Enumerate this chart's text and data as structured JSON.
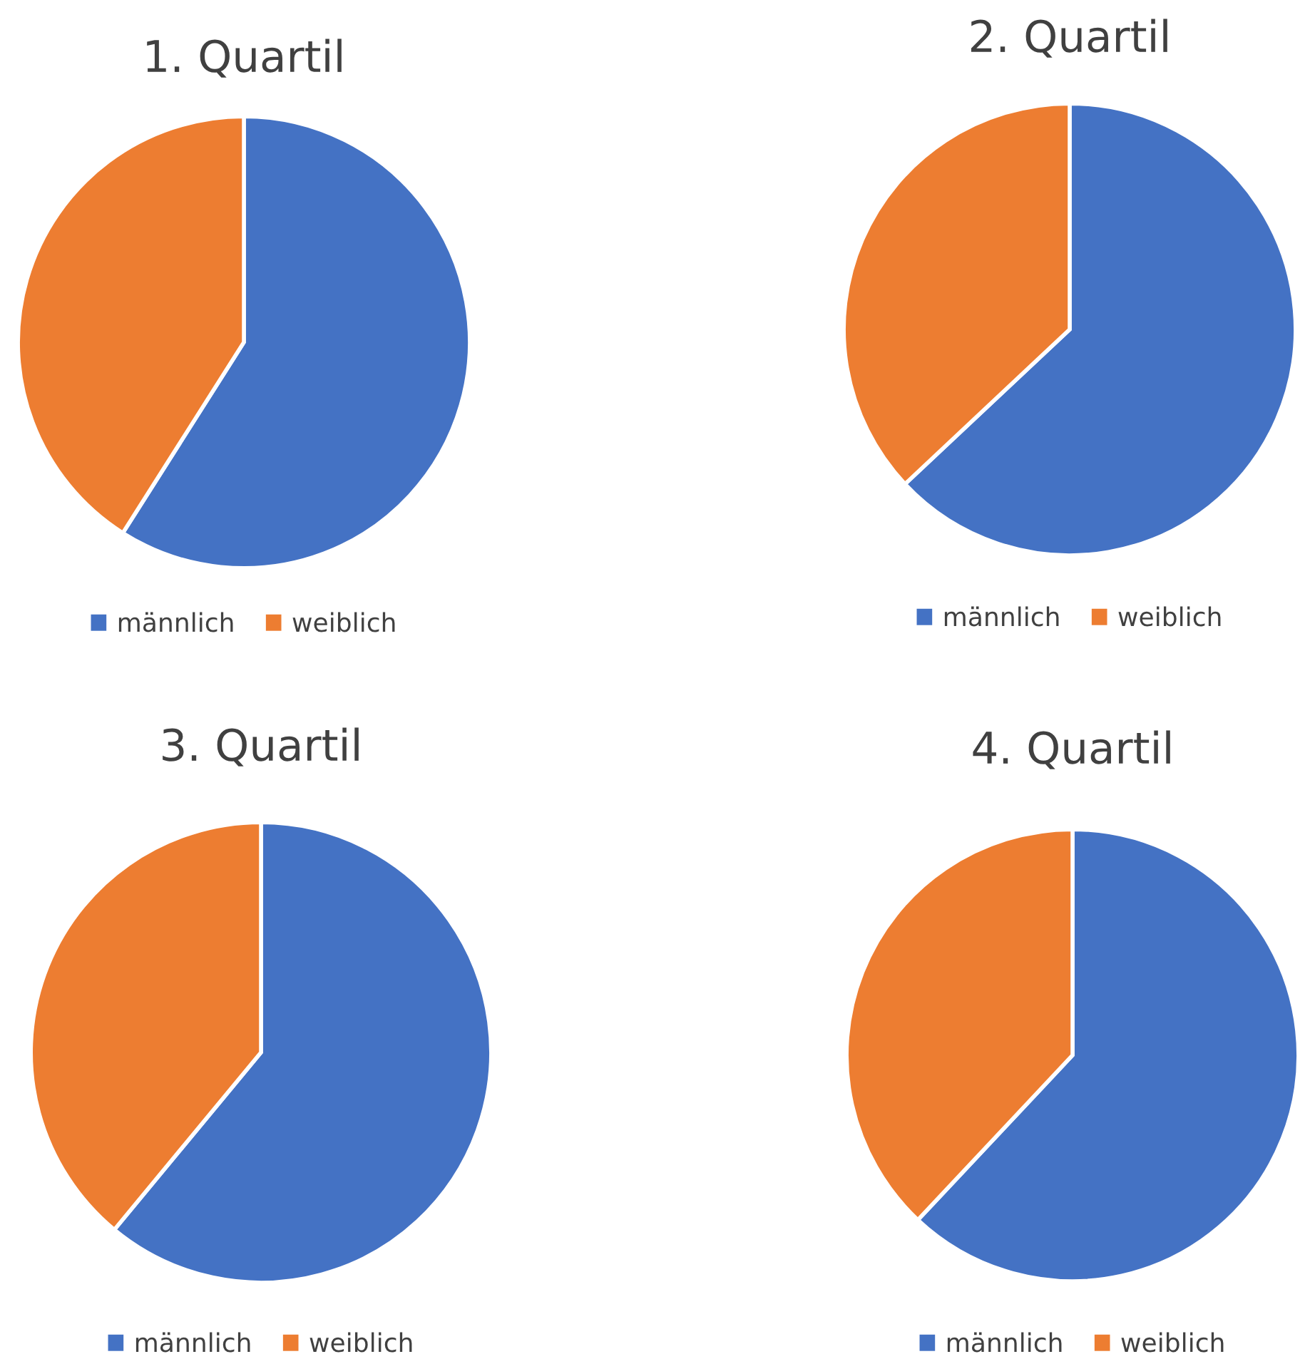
{
  "chart_data": [
    {
      "type": "pie",
      "title": "1. Quartil",
      "categories": [
        "männlich",
        "weiblich"
      ],
      "values": [
        59,
        41
      ],
      "colors": [
        "#4472c4",
        "#ed7d31"
      ],
      "legend": "bottom"
    },
    {
      "type": "pie",
      "title": "2. Quartil",
      "categories": [
        "männlich",
        "weiblich"
      ],
      "values": [
        63,
        37
      ],
      "colors": [
        "#4472c4",
        "#ed7d31"
      ],
      "legend": "bottom"
    },
    {
      "type": "pie",
      "title": "3. Quartil",
      "categories": [
        "männlich",
        "weiblich"
      ],
      "values": [
        61,
        39
      ],
      "colors": [
        "#4472c4",
        "#ed7d31"
      ],
      "legend": "bottom"
    },
    {
      "type": "pie",
      "title": "4. Quartil",
      "categories": [
        "männlich",
        "weiblich"
      ],
      "values": [
        62,
        38
      ],
      "colors": [
        "#4472c4",
        "#ed7d31"
      ],
      "legend": "bottom"
    }
  ]
}
